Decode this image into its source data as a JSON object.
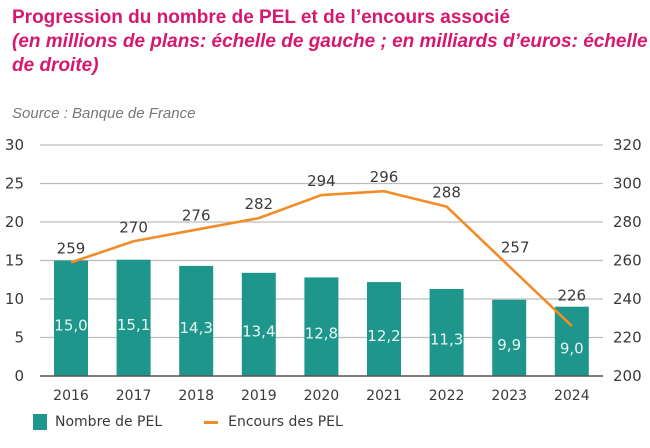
{
  "header": {
    "title": "Progression du nombre de PEL et de l’encours associé",
    "subtitle": "(en millions de plans: échelle de gauche ; en milliards d’euros: échelle de droite)",
    "source": "Source : Banque de France"
  },
  "colors": {
    "title": "#d6186e",
    "bar": "#1e968c",
    "line": "#f28c28",
    "grid": "#bdbdbd",
    "axis": "#555555"
  },
  "chart_data": {
    "type": "bar",
    "title": "Progression du nombre de PEL et de l’encours associé",
    "subtitle": "(en millions de plans: échelle de gauche ; en milliards d’euros: échelle de droite)",
    "categories": [
      "2016",
      "2017",
      "2018",
      "2019",
      "2020",
      "2021",
      "2022",
      "2023",
      "2024"
    ],
    "series": [
      {
        "name": "Nombre de PEL",
        "type": "bar",
        "axis": "left",
        "values": [
          15.0,
          15.1,
          14.3,
          13.4,
          12.8,
          12.2,
          11.3,
          9.9,
          9.0
        ],
        "labels": [
          "15,0",
          "15,1",
          "14,3",
          "13,4",
          "12,8",
          "12,2",
          "11,3",
          "9,9",
          "9,0"
        ]
      },
      {
        "name": "Encours des PEL",
        "type": "line",
        "axis": "right",
        "values": [
          259,
          270,
          276,
          282,
          294,
          296,
          288,
          257,
          226
        ],
        "labels": [
          "259",
          "270",
          "276",
          "282",
          "294",
          "296",
          "288",
          "257",
          "226"
        ]
      }
    ],
    "y_left": {
      "min": 0,
      "max": 30,
      "ticks": [
        0,
        5,
        10,
        15,
        20,
        25,
        30
      ]
    },
    "y_right": {
      "min": 200,
      "max": 320,
      "ticks": [
        200,
        220,
        240,
        260,
        280,
        300,
        320
      ]
    },
    "grid": true,
    "legend_position": "bottom-left",
    "source": "Source : Banque de France"
  },
  "legend": [
    {
      "label": "Nombre de PEL",
      "kind": "bar"
    },
    {
      "label": "Encours des PEL",
      "kind": "line"
    }
  ]
}
